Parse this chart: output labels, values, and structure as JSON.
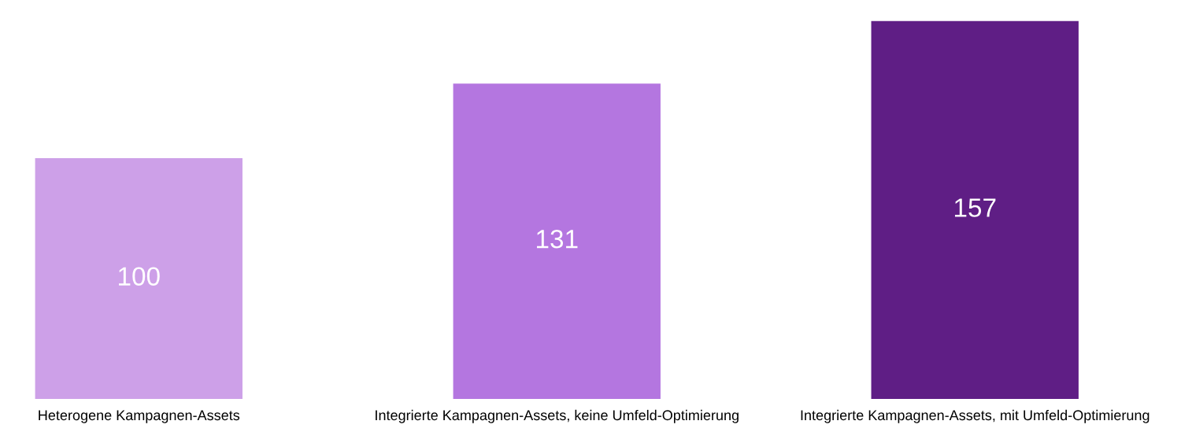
{
  "chart_data": {
    "type": "bar",
    "categories": [
      "Heterogene Kampagnen-Assets",
      "Integrierte Kampagnen-Assets, keine Umfeld-Optimierung",
      "Integrierte Kampagnen-Assets, mit Umfeld-Optimierung"
    ],
    "values": [
      100,
      131,
      157
    ],
    "colors": [
      "#cda0e8",
      "#b476e0",
      "#5f1e85"
    ],
    "data_labels": true,
    "grid": false,
    "legend": false
  }
}
